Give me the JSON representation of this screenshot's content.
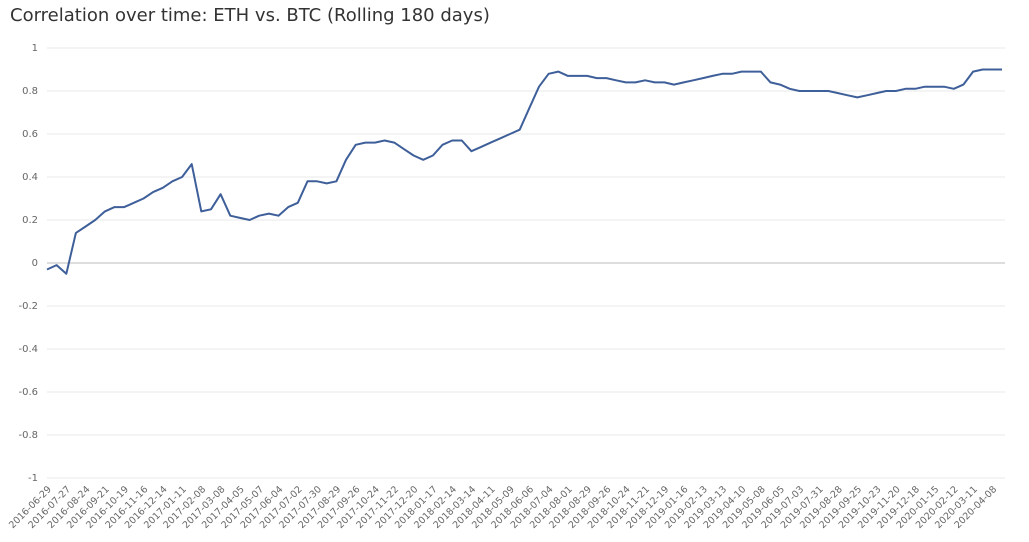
{
  "chart_data": {
    "type": "line",
    "title": "Correlation over time: ETH vs. BTC (Rolling 180 days)",
    "color": "#3e5f99",
    "categories": [
      "2016-06-29",
      null,
      "2016-07-27",
      null,
      "2016-08-24",
      null,
      "2016-09-21",
      null,
      "2016-10-19",
      null,
      "2016-11-16",
      null,
      "2016-12-14",
      null,
      "2017-01-11",
      null,
      "2017-02-08",
      null,
      "2017-03-08",
      null,
      "2017-04-05",
      null,
      "2017-05-07",
      null,
      "2017-06-04",
      null,
      "2017-07-02",
      null,
      "2017-07-30",
      null,
      "2017-08-29",
      null,
      "2017-09-26",
      null,
      "2017-10-24",
      null,
      "2017-11-22",
      null,
      "2017-12-20",
      null,
      "2018-01-17",
      null,
      "2018-02-14",
      null,
      "2018-03-14",
      null,
      "2018-04-11",
      null,
      "2018-05-09",
      null,
      "2018-06-06",
      null,
      "2018-07-04",
      null,
      "2018-08-01",
      null,
      "2018-08-29",
      null,
      "2018-09-26",
      null,
      "2018-10-24",
      null,
      "2018-11-21",
      null,
      "2018-12-19",
      null,
      "2019-01-16",
      null,
      "2019-02-13",
      null,
      "2019-03-13",
      null,
      "2019-04-10",
      null,
      "2019-05-08",
      null,
      "2019-06-05",
      null,
      "2019-07-03",
      null,
      "2019-07-31",
      null,
      "2019-08-28",
      null,
      "2019-09-25",
      null,
      "2019-10-23",
      null,
      "2019-11-20",
      null,
      "2019-12-18",
      null,
      "2020-01-15",
      null,
      "2020-02-12",
      null,
      "2020-03-11",
      null,
      "2020-04-08",
      null
    ],
    "values": [
      -0.03,
      -0.01,
      -0.05,
      0.14,
      0.17,
      0.2,
      0.24,
      0.26,
      0.26,
      0.28,
      0.3,
      0.33,
      0.35,
      0.38,
      0.4,
      0.46,
      0.24,
      0.25,
      0.32,
      0.22,
      0.21,
      0.2,
      0.22,
      0.23,
      0.22,
      0.26,
      0.28,
      0.38,
      0.38,
      0.37,
      0.38,
      0.48,
      0.55,
      0.56,
      0.56,
      0.57,
      0.56,
      0.53,
      0.5,
      0.48,
      0.5,
      0.55,
      0.57,
      0.57,
      0.52,
      0.54,
      0.56,
      0.58,
      0.6,
      0.62,
      0.72,
      0.82,
      0.88,
      0.89,
      0.87,
      0.87,
      0.87,
      0.86,
      0.86,
      0.85,
      0.84,
      0.84,
      0.85,
      0.84,
      0.84,
      0.83,
      0.84,
      0.85,
      0.86,
      0.87,
      0.88,
      0.88,
      0.89,
      0.89,
      0.89,
      0.84,
      0.83,
      0.81,
      0.8,
      0.8,
      0.8,
      0.8,
      0.79,
      0.78,
      0.77,
      0.78,
      0.79,
      0.8,
      0.8,
      0.81,
      0.81,
      0.82,
      0.82,
      0.82,
      0.81,
      0.83,
      0.89,
      0.9,
      0.9,
      0.9
    ],
    "ylim": [
      -1,
      1
    ],
    "yticks": [
      -1,
      -0.8,
      -0.6,
      -0.4,
      -0.2,
      0,
      0.2,
      0.4,
      0.6,
      0.8,
      1
    ],
    "grid": true
  }
}
